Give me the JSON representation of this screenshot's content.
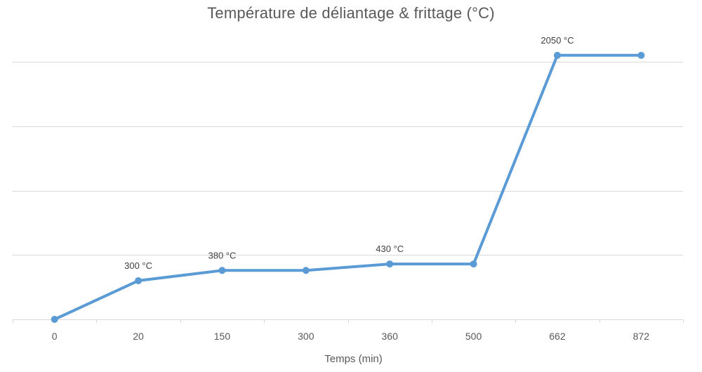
{
  "chart_data": {
    "type": "line",
    "title": "Température de déliantage & frittage (°C)",
    "xlabel": "Temps (min)",
    "ylabel": "",
    "categories": [
      "0",
      "20",
      "150",
      "300",
      "360",
      "500",
      "662",
      "872"
    ],
    "series": [
      {
        "values": [
          0,
          300,
          380,
          380,
          430,
          430,
          2050,
          2050
        ],
        "data_labels": [
          "",
          "300 °C",
          "380 °C",
          "",
          "430 °C",
          "",
          "2050 °C",
          ""
        ]
      }
    ],
    "ylim": [
      0,
      2000
    ],
    "grid_interval": 500,
    "grid": true,
    "y_tick_labels_visible": false,
    "legend": "none",
    "colors": {
      "series": "#5b9bd5",
      "grid": "#d9d9d9",
      "text": "#595959"
    }
  }
}
